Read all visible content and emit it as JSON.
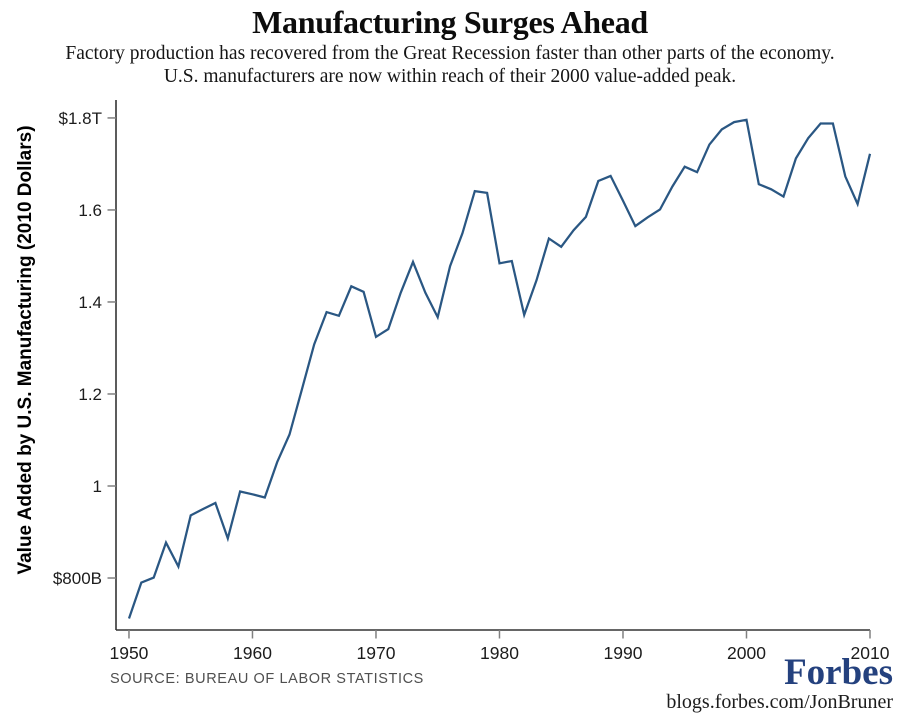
{
  "header": {
    "title": "Manufacturing Surges Ahead",
    "subtitle_line1": "Factory production has recovered from the Great Recession faster than other parts of the economy.",
    "subtitle_line2": "U.S. manufacturers are now within reach of their 2000 value-added peak."
  },
  "chart_data": {
    "type": "line",
    "title": "Manufacturing Surges Ahead",
    "xlabel": "",
    "ylabel": "Value Added by U.S. Manufacturing (2010 Dollars)",
    "xlim": [
      1948.95,
      2010
    ],
    "ylim": [
      0.687,
      1.839
    ],
    "grid": false,
    "legend": "none",
    "x_ticks": [
      {
        "value": 1950,
        "label": "1950"
      },
      {
        "value": 1960,
        "label": "1960"
      },
      {
        "value": 1970,
        "label": "1970"
      },
      {
        "value": 1980,
        "label": "1980"
      },
      {
        "value": 1990,
        "label": "1990"
      },
      {
        "value": 2000,
        "label": "2000"
      },
      {
        "value": 2010,
        "label": "2010"
      }
    ],
    "y_ticks": [
      {
        "value": 0.8,
        "label": "$800B"
      },
      {
        "value": 1.0,
        "label": "1"
      },
      {
        "value": 1.2,
        "label": "1.2"
      },
      {
        "value": 1.4,
        "label": "1.4"
      },
      {
        "value": 1.6,
        "label": "1.6"
      },
      {
        "value": 1.8,
        "label": "$1.8T"
      }
    ],
    "series": [
      {
        "name": "Value added by U.S. manufacturing (trillions of 2010 dollars)",
        "x": [
          1950,
          1951,
          1952,
          1953,
          1954,
          1955,
          1956,
          1957,
          1958,
          1959,
          1960,
          1961,
          1962,
          1963,
          1964,
          1965,
          1966,
          1967,
          1968,
          1969,
          1970,
          1971,
          1972,
          1973,
          1974,
          1975,
          1976,
          1977,
          1978,
          1979,
          1980,
          1981,
          1982,
          1983,
          1984,
          1985,
          1986,
          1987,
          1988,
          1989,
          1990,
          1991,
          1992,
          1993,
          1994,
          1995,
          1996,
          1997,
          1998,
          1999,
          2000,
          2001,
          2002,
          2003,
          2004,
          2005,
          2006,
          2007,
          2008,
          2009,
          2010
        ],
        "values": [
          0.712,
          0.79,
          0.801,
          0.877,
          0.825,
          0.936,
          0.95,
          0.963,
          0.886,
          0.988,
          0.982,
          0.975,
          1.052,
          1.112,
          1.21,
          1.308,
          1.378,
          1.37,
          1.434,
          1.422,
          1.324,
          1.341,
          1.42,
          1.487,
          1.42,
          1.367,
          1.478,
          1.549,
          1.641,
          1.637,
          1.484,
          1.489,
          1.372,
          1.447,
          1.538,
          1.52,
          1.556,
          1.585,
          1.663,
          1.674,
          1.62,
          1.565,
          1.584,
          1.601,
          1.651,
          1.694,
          1.682,
          1.742,
          1.775,
          1.791,
          1.796,
          1.656,
          1.645,
          1.629,
          1.712,
          1.756,
          1.788,
          1.788,
          1.673,
          1.613,
          1.722
        ]
      }
    ]
  },
  "footer": {
    "source": "SOURCE: BUREAU OF LABOR STATISTICS",
    "brand": "Forbes",
    "byline_url": "blogs.forbes.com/JonBruner"
  },
  "colors": {
    "line": "#2a5783",
    "axis": "#333333",
    "tick": "#808080",
    "tick_label": "#1c1c1c",
    "brand_blue": "#24417e"
  }
}
